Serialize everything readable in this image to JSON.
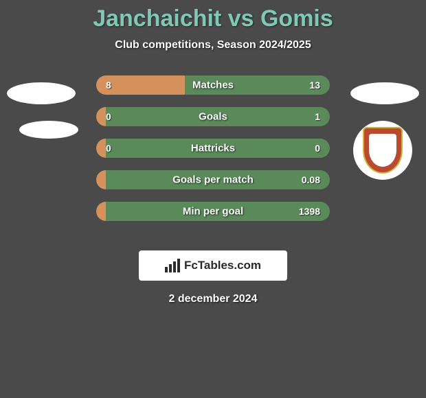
{
  "title": "Janchaichit vs Gomis",
  "subtitle": "Club competitions, Season 2024/2025",
  "stats": [
    {
      "label": "Matches",
      "left_value": "8",
      "right_value": "13",
      "left_pct": 38,
      "bar_left_color": "#d4915c",
      "bar_right_color": "#5a8a5a"
    },
    {
      "label": "Goals",
      "left_value": "0",
      "right_value": "1",
      "left_pct": 4,
      "bar_left_color": "#d4915c",
      "bar_right_color": "#5a8a5a"
    },
    {
      "label": "Hattricks",
      "left_value": "0",
      "right_value": "0",
      "left_pct": 4,
      "bar_left_color": "#d4915c",
      "bar_right_color": "#5a8a5a"
    },
    {
      "label": "Goals per match",
      "left_value": "",
      "right_value": "0.08",
      "left_pct": 4,
      "bar_left_color": "#d4915c",
      "bar_right_color": "#5a8a5a"
    },
    {
      "label": "Min per goal",
      "left_value": "",
      "right_value": "1398",
      "left_pct": 4,
      "bar_left_color": "#d4915c",
      "bar_right_color": "#5a8a5a"
    }
  ],
  "brand": "FcTables.com",
  "date": "2 december 2024",
  "colors": {
    "background": "#4a4a4a",
    "title_color": "#7ec9b3",
    "text_color": "#ffffff",
    "avatar_color": "#ffffff",
    "badge_outer": "#b84a2f",
    "badge_border": "#d4af37"
  }
}
